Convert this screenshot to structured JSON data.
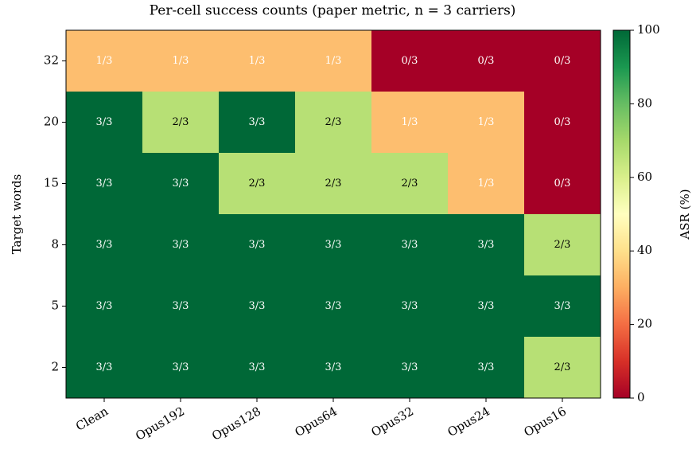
{
  "chart_data": {
    "type": "heatmap",
    "title": "Per-cell success counts (paper metric, n = 3 carriers)",
    "ylabel": "Target words",
    "categories": [
      "Clean",
      "Opus192",
      "Opus128",
      "Opus64",
      "Opus32",
      "Opus24",
      "Opus16"
    ],
    "rows": [
      "32",
      "20",
      "15",
      "8",
      "5",
      "2"
    ],
    "z": [
      [
        33.3,
        33.3,
        33.3,
        33.3,
        0,
        0,
        0
      ],
      [
        100,
        66.7,
        100,
        66.7,
        33.3,
        33.3,
        0
      ],
      [
        100,
        100,
        66.7,
        66.7,
        66.7,
        33.3,
        0
      ],
      [
        100,
        100,
        100,
        100,
        100,
        100,
        66.7
      ],
      [
        100,
        100,
        100,
        100,
        100,
        100,
        100
      ],
      [
        100,
        100,
        100,
        100,
        100,
        100,
        66.7
      ]
    ],
    "value_labels": [
      [
        "1/3",
        "1/3",
        "1/3",
        "1/3",
        "0/3",
        "0/3",
        "0/3"
      ],
      [
        "3/3",
        "2/3",
        "3/3",
        "2/3",
        "1/3",
        "1/3",
        "0/3"
      ],
      [
        "3/3",
        "3/3",
        "2/3",
        "2/3",
        "2/3",
        "1/3",
        "0/3"
      ],
      [
        "3/3",
        "3/3",
        "3/3",
        "3/3",
        "3/3",
        "3/3",
        "2/3"
      ],
      [
        "3/3",
        "3/3",
        "3/3",
        "3/3",
        "3/3",
        "3/3",
        "3/3"
      ],
      [
        "3/3",
        "3/3",
        "3/3",
        "3/3",
        "3/3",
        "3/3",
        "2/3"
      ]
    ],
    "colormap": "RdYlGn",
    "colorbar_label": "ASR (%)",
    "clim": [
      0,
      100
    ],
    "cticks": [
      0,
      20,
      40,
      60,
      80,
      100
    ]
  }
}
